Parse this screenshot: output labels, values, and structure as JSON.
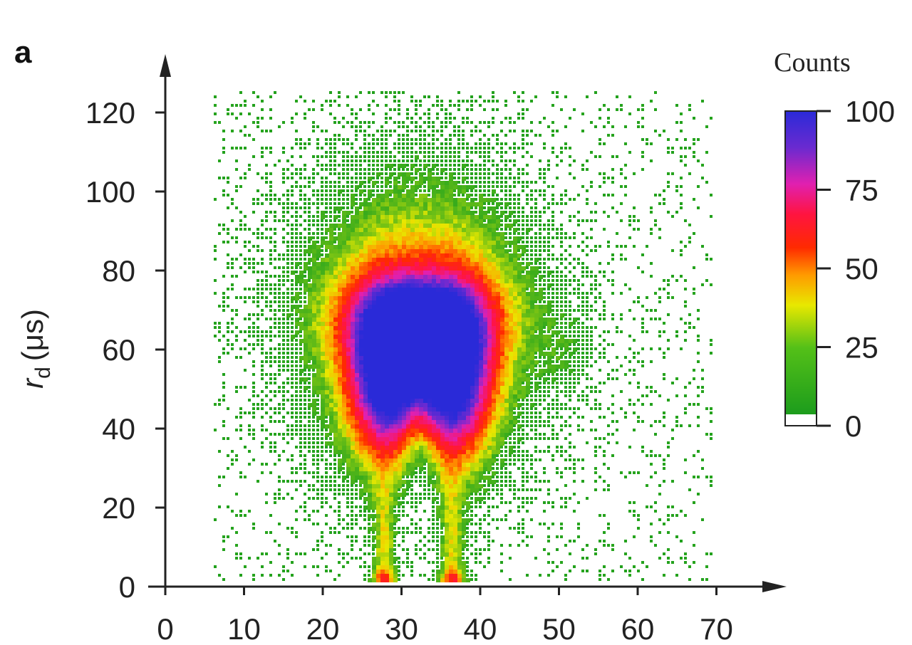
{
  "chart_data": {
    "type": "heatmap",
    "panel_label": "a",
    "ylabel_symbol": "r",
    "ylabel_subscript": "d",
    "ylabel_unit": "(μs)",
    "xlabel": "",
    "xlim": [
      0,
      70
    ],
    "ylim": [
      0,
      120
    ],
    "x_ticks": [
      0,
      10,
      20,
      30,
      40,
      50,
      60,
      70
    ],
    "y_ticks": [
      0,
      20,
      40,
      60,
      80,
      100,
      120
    ],
    "colorbar": {
      "title": "Counts",
      "range": [
        0,
        100
      ],
      "ticks": [
        0,
        25,
        50,
        75,
        100
      ],
      "colors": [
        "#ffffff",
        "#1c9c1c",
        "#e8e800",
        "#ff2a00",
        "#e020b0",
        "#3a2ad0"
      ]
    },
    "features": [
      {
        "name": "left lobe",
        "x": 28,
        "y_range": [
          35,
          70
        ],
        "peak_counts": 100
      },
      {
        "name": "right lobe",
        "x": 36,
        "y_range": [
          35,
          70
        ],
        "peak_counts": 100
      },
      {
        "name": "left stem",
        "x": 27.5,
        "y_range": [
          0,
          25
        ],
        "peak_counts": 50
      },
      {
        "name": "right stem",
        "x": 36,
        "y_range": [
          0,
          25
        ],
        "peak_counts": 50
      }
    ]
  }
}
